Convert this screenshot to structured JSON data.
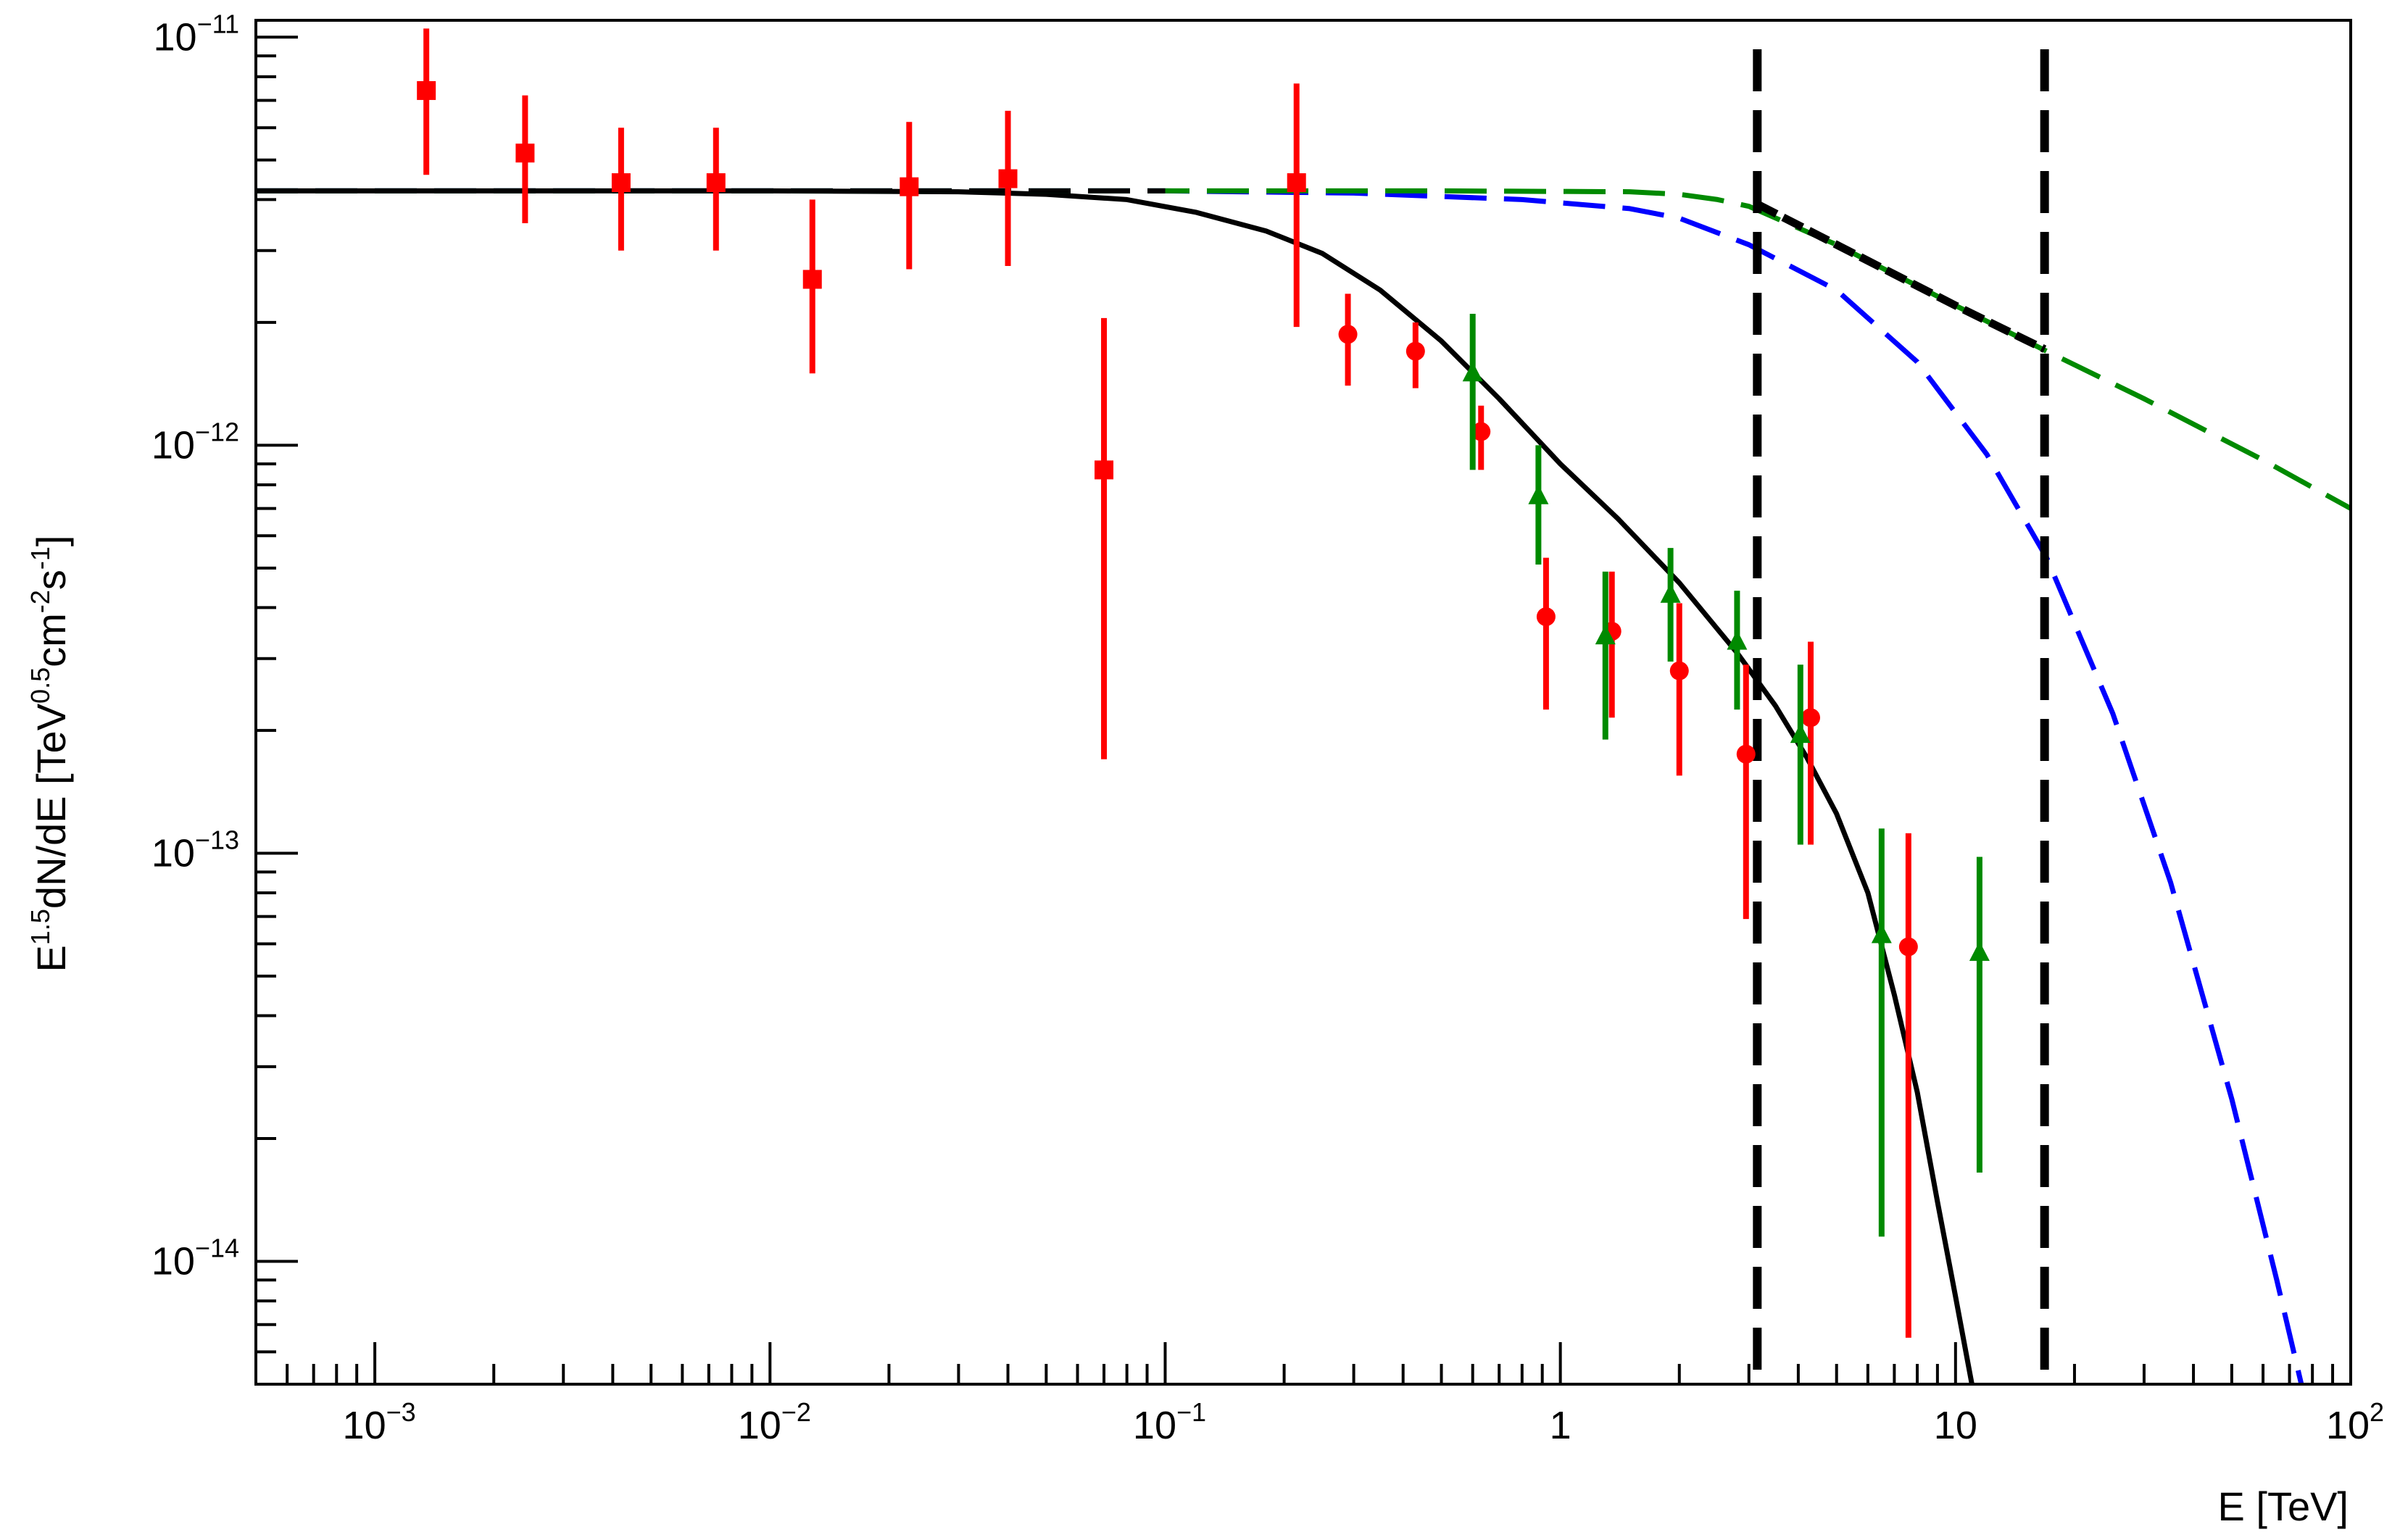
{
  "chart_data": {
    "type": "scatter",
    "title": "",
    "xlabel": "E [TeV]",
    "ylabel_parts": {
      "main1": "E",
      "exp1": "1.5",
      "main2": "dN/dE [TeV",
      "exp2": "0.5",
      "main3": "cm",
      "exp3": "-2",
      "main4": "s",
      "exp4": "-1",
      "main5": "]"
    },
    "x_scale": "log",
    "y_scale": "log",
    "xlim": [
      0.0005,
      100
    ],
    "ylim": [
      5e-15,
      1.1e-11
    ],
    "grid": false,
    "x_tick_labels": [
      {
        "value": 0.001,
        "base": "10",
        "exp": "−3"
      },
      {
        "value": 0.01,
        "base": "10",
        "exp": "−2"
      },
      {
        "value": 0.1,
        "base": "10",
        "exp": "−1"
      },
      {
        "value": 1,
        "base": "1",
        "exp": ""
      },
      {
        "value": 10,
        "base": "10",
        "exp": ""
      },
      {
        "value": 100,
        "base": "10",
        "exp": "2"
      }
    ],
    "y_tick_labels": [
      {
        "value": 1e-11,
        "base": "10",
        "exp": "−11"
      },
      {
        "value": 1e-12,
        "base": "10",
        "exp": "−12"
      },
      {
        "value": 1e-13,
        "base": "10",
        "exp": "−13"
      },
      {
        "value": 1e-14,
        "base": "10",
        "exp": "−14"
      }
    ],
    "colors": {
      "red": "#ff0000",
      "green": "#008a00",
      "blue": "#0000ff",
      "black": "#000000"
    },
    "data_series": [
      {
        "marker": "square",
        "color": "#ff0000",
        "points": [
          {
            "x": 0.00135,
            "y": 7.4e-12,
            "ylo": 4.6e-12,
            "yhi": 1.05e-11
          },
          {
            "x": 0.0024,
            "y": 5.2e-12,
            "ylo": 3.5e-12,
            "yhi": 7.2e-12
          },
          {
            "x": 0.0042,
            "y": 4.4e-12,
            "ylo": 3e-12,
            "yhi": 6e-12
          },
          {
            "x": 0.0073,
            "y": 4.4e-12,
            "ylo": 3e-12,
            "yhi": 6e-12
          },
          {
            "x": 0.0128,
            "y": 2.55e-12,
            "ylo": 1.5e-12,
            "yhi": 4e-12
          },
          {
            "x": 0.0225,
            "y": 4.3e-12,
            "ylo": 2.7e-12,
            "yhi": 6.2e-12
          },
          {
            "x": 0.04,
            "y": 4.5e-12,
            "ylo": 2.75e-12,
            "yhi": 6.6e-12
          },
          {
            "x": 0.07,
            "y": 8.7e-13,
            "ylo": 1.7e-13,
            "yhi": 2.05e-12
          },
          {
            "x": 0.215,
            "y": 4.4e-12,
            "ylo": 1.95e-12,
            "yhi": 7.7e-12
          }
        ]
      },
      {
        "marker": "circle",
        "color": "#ff0000",
        "points": [
          {
            "x": 0.29,
            "y": 1.87e-12,
            "ylo": 1.4e-12,
            "yhi": 2.35e-12
          },
          {
            "x": 0.43,
            "y": 1.7e-12,
            "ylo": 1.38e-12,
            "yhi": 2e-12
          },
          {
            "x": 0.63,
            "y": 1.08e-12,
            "ylo": 8.7e-13,
            "yhi": 1.25e-12
          },
          {
            "x": 0.92,
            "y": 3.8e-13,
            "ylo": 2.25e-13,
            "yhi": 5.3e-13
          },
          {
            "x": 1.35,
            "y": 3.5e-13,
            "ylo": 2.15e-13,
            "yhi": 4.9e-13
          },
          {
            "x": 2.0,
            "y": 2.8e-13,
            "ylo": 1.55e-13,
            "yhi": 4.1e-13
          },
          {
            "x": 2.95,
            "y": 1.75e-13,
            "ylo": 6.9e-14,
            "yhi": 2.9e-13
          },
          {
            "x": 4.3,
            "y": 2.15e-13,
            "ylo": 1.05e-13,
            "yhi": 3.3e-13
          },
          {
            "x": 7.6,
            "y": 5.9e-14,
            "ylo": 6.5e-15,
            "yhi": 1.12e-13
          }
        ]
      },
      {
        "marker": "triangle",
        "color": "#008a00",
        "points": [
          {
            "x": 0.6,
            "y": 1.5e-12,
            "ylo": 8.7e-13,
            "yhi": 2.1e-12
          },
          {
            "x": 0.88,
            "y": 7.5e-13,
            "ylo": 5.1e-13,
            "yhi": 1e-12
          },
          {
            "x": 1.3,
            "y": 3.4e-13,
            "ylo": 1.9e-13,
            "yhi": 4.9e-13
          },
          {
            "x": 1.9,
            "y": 4.3e-13,
            "ylo": 2.95e-13,
            "yhi": 5.6e-13
          },
          {
            "x": 2.8,
            "y": 3.3e-13,
            "ylo": 2.25e-13,
            "yhi": 4.4e-13
          },
          {
            "x": 4.05,
            "y": 1.95e-13,
            "ylo": 1.05e-13,
            "yhi": 2.9e-13
          },
          {
            "x": 6.5,
            "y": 6.3e-14,
            "ylo": 1.15e-14,
            "yhi": 1.15e-13
          },
          {
            "x": 11.5,
            "y": 5.7e-14,
            "ylo": 1.65e-14,
            "yhi": 9.8e-14
          }
        ]
      }
    ],
    "model_curves": [
      {
        "style": "solid",
        "color": "#000000",
        "points": [
          [
            0.0005,
            4.2e-12
          ],
          [
            0.01,
            4.2e-12
          ],
          [
            0.03,
            4.18e-12
          ],
          [
            0.05,
            4.12e-12
          ],
          [
            0.08,
            4e-12
          ],
          [
            0.12,
            3.72e-12
          ],
          [
            0.18,
            3.35e-12
          ],
          [
            0.25,
            2.95e-12
          ],
          [
            0.35,
            2.4e-12
          ],
          [
            0.5,
            1.8e-12
          ],
          [
            0.7,
            1.3e-12
          ],
          [
            1.0,
            9e-13
          ],
          [
            1.4,
            6.6e-13
          ],
          [
            2.0,
            4.6e-13
          ],
          [
            2.8,
            3.1e-13
          ],
          [
            3.5,
            2.3e-13
          ],
          [
            4.2,
            1.72e-13
          ],
          [
            5.0,
            1.25e-13
          ],
          [
            6.0,
            8e-14
          ],
          [
            7.0,
            4.5e-14
          ],
          [
            8.0,
            2.6e-14
          ],
          [
            9.0,
            1.4e-14
          ],
          [
            10.0,
            8.2e-15
          ],
          [
            11.0,
            5e-15
          ]
        ]
      },
      {
        "style": "dashed",
        "color": "#0000ff",
        "points": [
          [
            0.0005,
            4.2e-12
          ],
          [
            0.1,
            4.2e-12
          ],
          [
            0.3,
            4.15e-12
          ],
          [
            0.8,
            4e-12
          ],
          [
            1.5,
            3.8e-12
          ],
          [
            2.0,
            3.6e-12
          ],
          [
            3.0,
            3.1e-12
          ],
          [
            5.0,
            2.4e-12
          ],
          [
            8.0,
            1.6e-12
          ],
          [
            12.0,
            9.5e-13
          ],
          [
            17.0,
            5.3e-13
          ],
          [
            25.0,
            2.2e-13
          ],
          [
            35.0,
            8.5e-14
          ],
          [
            50.0,
            2.5e-14
          ],
          [
            65.0,
            9e-15
          ],
          [
            75.0,
            5e-15
          ]
        ]
      },
      {
        "style": "dashed",
        "color": "#008a00",
        "points": [
          [
            0.0005,
            4.2e-12
          ],
          [
            0.5,
            4.2e-12
          ],
          [
            1.5,
            4.18e-12
          ],
          [
            2.0,
            4.12e-12
          ],
          [
            2.5,
            4e-12
          ],
          [
            3.0,
            3.85e-12
          ],
          [
            5.0,
            3.1e-12
          ],
          [
            10.0,
            2.2e-12
          ],
          [
            17.0,
            1.7e-12
          ],
          [
            30.0,
            1.3e-12
          ],
          [
            60.0,
            9.2e-13
          ],
          [
            100.0,
            7e-13
          ]
        ]
      },
      {
        "style": "dashed",
        "color": "#000000",
        "points": [
          [
            0.0005,
            4.2e-12
          ],
          [
            0.1,
            4.2e-12
          ]
        ]
      },
      {
        "style": "thick-dashed",
        "color": "#000000",
        "points": [
          [
            3.15,
            3.9e-12
          ],
          [
            5.0,
            3.1e-12
          ],
          [
            10.0,
            2.2e-12
          ],
          [
            16.8,
            1.72e-12
          ]
        ]
      }
    ],
    "vertical_lines": [
      {
        "x": 3.15,
        "style": "dashed",
        "color": "#000000"
      },
      {
        "x": 16.8,
        "style": "dashed",
        "color": "#000000"
      }
    ]
  }
}
